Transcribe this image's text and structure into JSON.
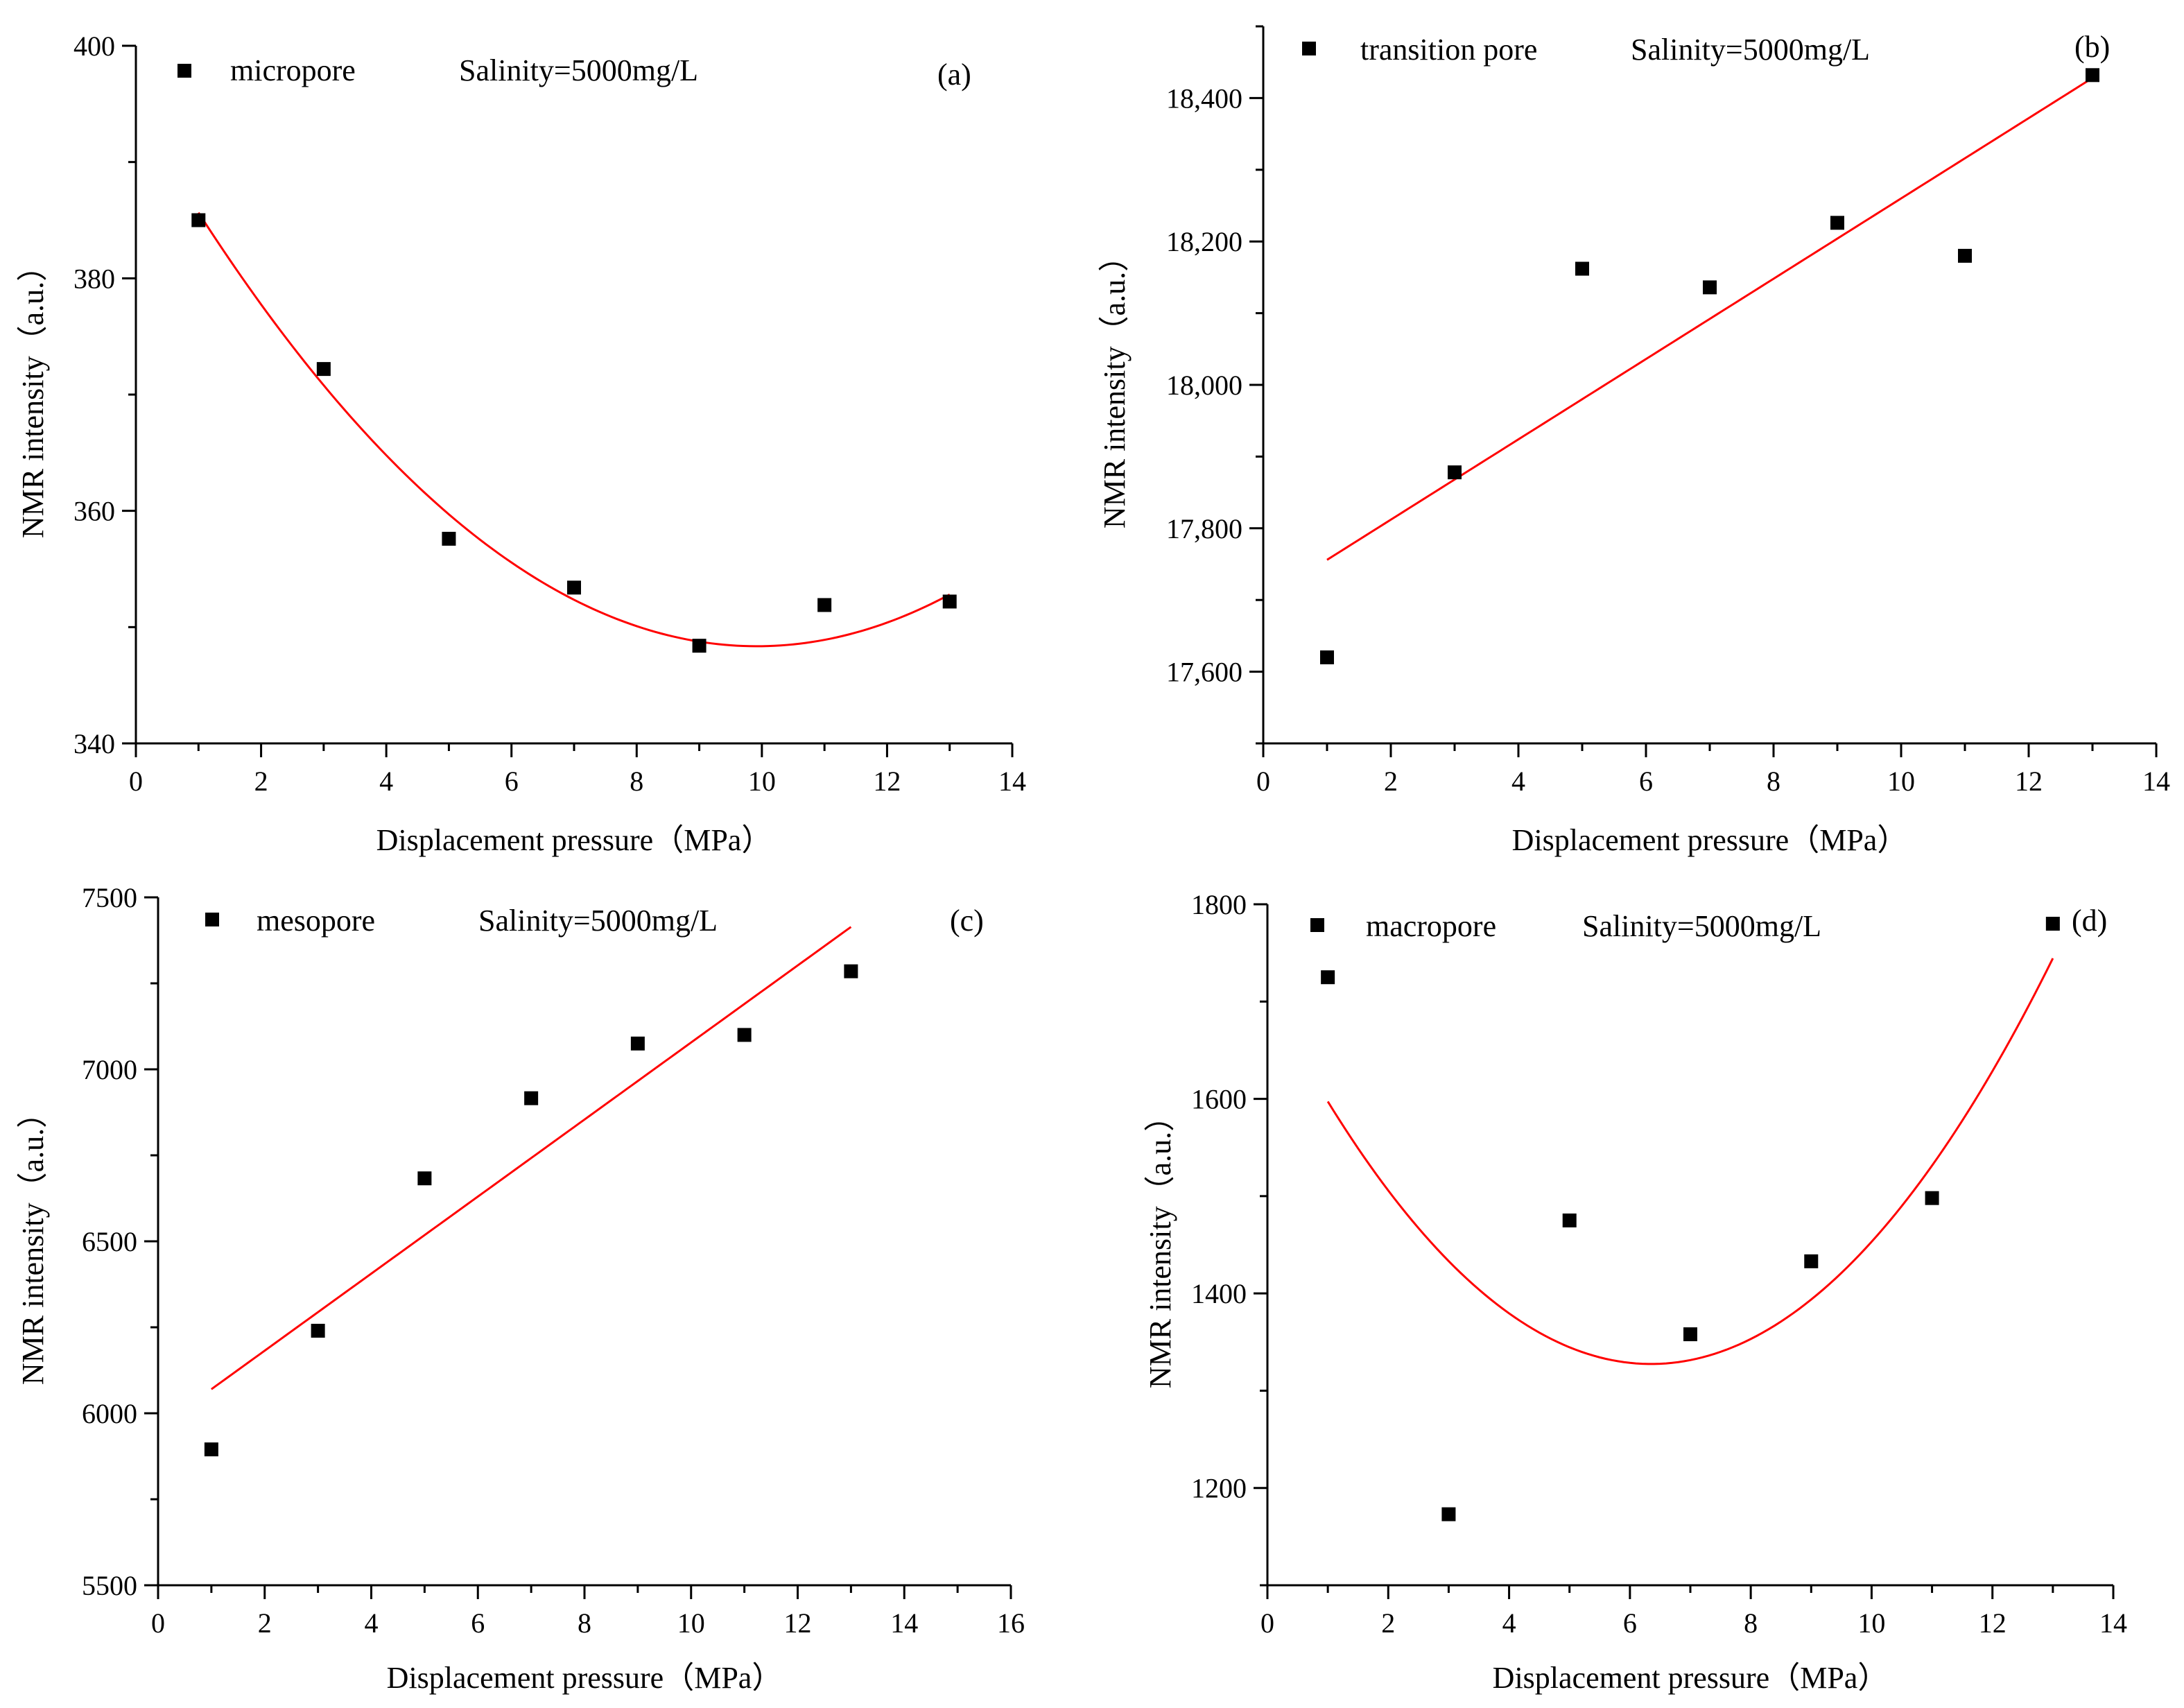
{
  "chart_data": [
    {
      "type": "scatter",
      "panel_label": "(a)",
      "legend_label": "micropore",
      "annotation": "Salinity=5000mg/L",
      "xlabel": "Displacement pressure（MPa）",
      "ylabel": "NMR intensity（a.u.）",
      "xlim": [
        0,
        14
      ],
      "ylim": [
        340,
        400
      ],
      "xticks": [
        0,
        2,
        4,
        6,
        8,
        10,
        12,
        14
      ],
      "yticks": [
        340,
        360,
        380,
        400
      ],
      "ytick_labels": [
        "340",
        "360",
        "380",
        "400"
      ],
      "x": [
        1,
        3,
        5,
        7,
        9,
        11,
        13
      ],
      "y": [
        385,
        372.2,
        357.6,
        353.4,
        348.4,
        351.9,
        352.2
      ],
      "fit": {
        "type": "quadratic",
        "x_range": [
          1,
          13
        ],
        "coefficients": [
          394.48,
          -9.3,
          0.4688
        ]
      },
      "marker_color": "#000000",
      "fit_color": "#ff0000",
      "grid": false
    },
    {
      "type": "scatter",
      "panel_label": "(b)",
      "legend_label": "transition pore",
      "annotation": "Salinity=5000mg/L",
      "xlabel": "Displacement pressure（MPa）",
      "ylabel": "NMR intensity（a.u.）",
      "xlim": [
        0,
        14
      ],
      "ylim": [
        17500,
        18500
      ],
      "xticks": [
        0,
        2,
        4,
        6,
        8,
        10,
        12,
        14
      ],
      "yticks": [
        17600,
        17800,
        18000,
        18200,
        18400
      ],
      "ytick_labels": [
        "17,600",
        "17,800",
        "18,000",
        "18,200",
        "18,400"
      ],
      "x": [
        1,
        3,
        5,
        7,
        9,
        11,
        13
      ],
      "y": [
        17620,
        17878,
        18162,
        18136,
        18226,
        18180,
        18432
      ],
      "fit": {
        "type": "linear",
        "x_range": [
          1,
          13
        ],
        "coefficients": [
          17700,
          56
        ]
      },
      "marker_color": "#000000",
      "fit_color": "#ff0000",
      "grid": false
    },
    {
      "type": "scatter",
      "panel_label": "(c)",
      "legend_label": "mesopore",
      "annotation": "Salinity=5000mg/L",
      "xlabel": "Displacement pressure（MPa）",
      "ylabel": "NMR intensity（a.u.）",
      "xlim": [
        0,
        16
      ],
      "ylim": [
        5500,
        7500
      ],
      "xticks": [
        0,
        2,
        4,
        6,
        8,
        10,
        12,
        14,
        16
      ],
      "yticks": [
        5500,
        6000,
        6500,
        7000,
        7500
      ],
      "ytick_labels": [
        "5500",
        "6000",
        "6500",
        "7000",
        "7500"
      ],
      "x": [
        1,
        3,
        5,
        7,
        9,
        11,
        13
      ],
      "y": [
        5895,
        6240,
        6683,
        6916,
        7075,
        7100,
        7285
      ],
      "fit": {
        "type": "linear",
        "x_range": [
          1,
          13
        ],
        "coefficients": [
          5958,
          112
        ]
      },
      "marker_color": "#000000",
      "fit_color": "#ff0000",
      "grid": false
    },
    {
      "type": "scatter",
      "panel_label": "(d)",
      "legend_label": "macropore",
      "annotation": "Salinity=5000mg/L",
      "xlabel": "Displacement pressure（MPa）",
      "ylabel": "NMR intensity（a.u.）",
      "xlim": [
        0,
        14
      ],
      "ylim": [
        1100,
        1800
      ],
      "xticks": [
        0,
        2,
        4,
        6,
        8,
        10,
        12,
        14
      ],
      "yticks": [
        1200,
        1400,
        1600,
        1800
      ],
      "ytick_labels": [
        "1200",
        "1400",
        "1600",
        "1800"
      ],
      "x": [
        1,
        3,
        5,
        7,
        9,
        11,
        13
      ],
      "y": [
        1725,
        1173,
        1475,
        1358,
        1433,
        1498,
        1780
      ],
      "fit": {
        "type": "quadratic",
        "x_range": [
          1,
          13
        ],
        "coefficients": [
          1707.5,
          -119.71,
          9.427
        ]
      },
      "marker_color": "#000000",
      "fit_color": "#ff0000",
      "grid": false
    }
  ]
}
